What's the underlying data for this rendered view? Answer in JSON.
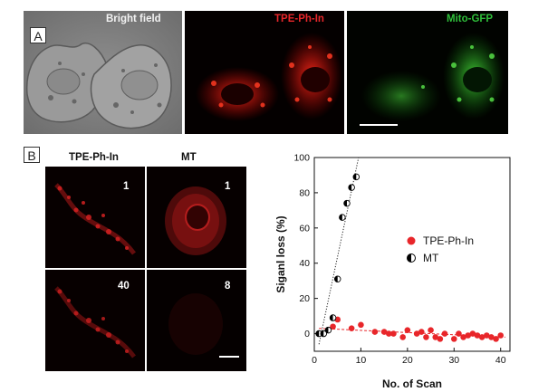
{
  "panel_a": {
    "letter": "A",
    "labels": [
      "Bright field",
      "TPE-Ph-In",
      "Mito-GFP"
    ],
    "label_colors": [
      "#f2f2f2",
      "#e8262a",
      "#2fbf3a"
    ]
  },
  "panel_b": {
    "letter": "B",
    "column_headers": [
      "TPE-Ph-In",
      "MT"
    ],
    "scan_labels": [
      "1",
      "1",
      "40",
      "8"
    ]
  },
  "chart_data": {
    "type": "scatter",
    "xlabel": "No. of Scan",
    "ylabel": "Siganl loss (%)",
    "xlim": [
      0,
      42
    ],
    "ylim": [
      100,
      -10
    ],
    "xticks": [
      0,
      10,
      20,
      30,
      40
    ],
    "yticks": [
      0,
      20,
      40,
      60,
      80,
      100
    ],
    "grid": false,
    "legend_position": "right-middle",
    "series": [
      {
        "name": "TPE-Ph-In",
        "color": "#e8262a",
        "marker": "filled-circle",
        "x": [
          1,
          2,
          3,
          4,
          5,
          8,
          10,
          13,
          15,
          16,
          17,
          19,
          20,
          22,
          23,
          24,
          25,
          26,
          27,
          28,
          30,
          31,
          32,
          33,
          34,
          35,
          36,
          37,
          38,
          39,
          40
        ],
        "y": [
          0,
          0,
          2,
          4,
          8,
          3,
          5,
          1,
          1,
          0,
          0,
          -2,
          2,
          0,
          1,
          -2,
          2,
          -2,
          -3,
          0,
          -3,
          0,
          -2,
          -1,
          0,
          -1,
          -2,
          -1,
          -2,
          -3,
          -1
        ],
        "trend": {
          "x": [
            1,
            41
          ],
          "y": [
            3,
            -2
          ],
          "style": "dashed"
        }
      },
      {
        "name": "MT",
        "color": "#000000",
        "marker": "half-filled-circle",
        "x": [
          1,
          2,
          3,
          4,
          5,
          6,
          7,
          8,
          9
        ],
        "y": [
          0,
          0,
          2,
          9,
          31,
          66,
          74,
          83,
          89
        ],
        "trend": {
          "x": [
            1,
            9.5
          ],
          "y": [
            -6,
            100
          ],
          "style": "dotted"
        }
      }
    ]
  }
}
